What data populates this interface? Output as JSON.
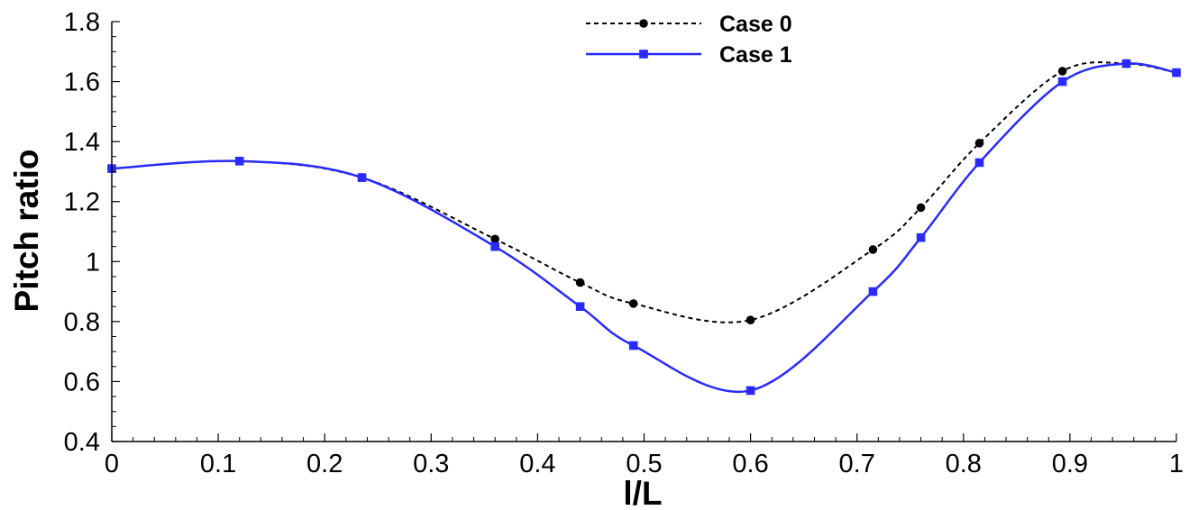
{
  "chart_data": {
    "type": "line",
    "xlabel": "l/L",
    "ylabel": "Pitch ratio",
    "xlim": [
      0,
      1
    ],
    "ylim": [
      0.4,
      1.8
    ],
    "x_ticks": [
      "0",
      "0.1",
      "0.2",
      "0.3",
      "0.4",
      "0.5",
      "0.6",
      "0.7",
      "0.8",
      "0.9",
      "1"
    ],
    "y_ticks": [
      "0.4",
      "0.6",
      "0.8",
      "1",
      "1.2",
      "1.4",
      "1.6",
      "1.8"
    ],
    "grid": false,
    "legend_position": "top-center",
    "series": [
      {
        "name": "Case 0",
        "color": "#000000",
        "line_style": "dashed",
        "marker": "circle",
        "x": [
          0,
          0.12,
          0.235,
          0.36,
          0.44,
          0.49,
          0.6,
          0.715,
          0.76,
          0.815,
          0.893,
          0.953,
          1.0
        ],
        "y": [
          1.31,
          1.335,
          1.28,
          1.075,
          0.93,
          0.86,
          0.805,
          1.04,
          1.18,
          1.395,
          1.635,
          1.66,
          1.63
        ]
      },
      {
        "name": "Case 1",
        "color": "#2a2aff",
        "line_style": "solid",
        "marker": "square",
        "x": [
          0,
          0.12,
          0.235,
          0.36,
          0.44,
          0.49,
          0.6,
          0.715,
          0.76,
          0.815,
          0.893,
          0.953,
          1.0
        ],
        "y": [
          1.31,
          1.335,
          1.28,
          1.05,
          0.85,
          0.72,
          0.57,
          0.9,
          1.08,
          1.33,
          1.6,
          1.66,
          1.63
        ]
      }
    ]
  }
}
